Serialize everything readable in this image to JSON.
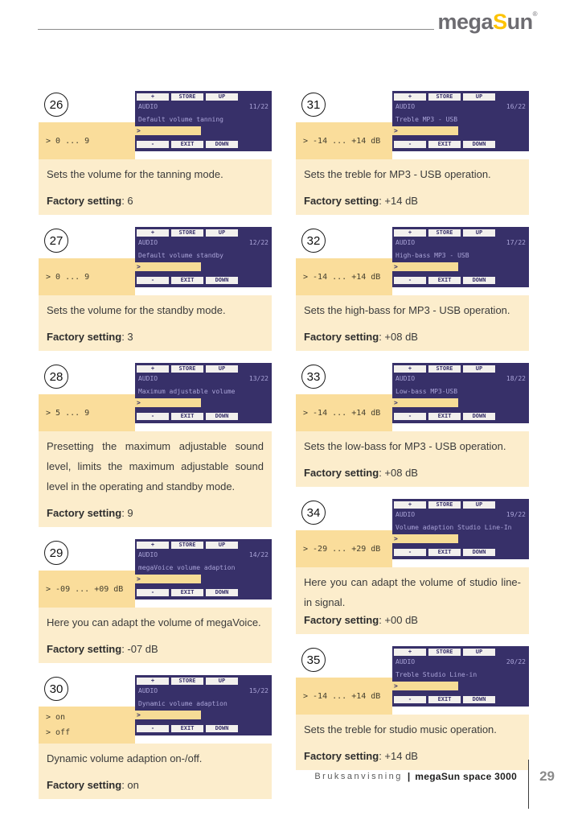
{
  "header": {
    "logo_mega": "mega",
    "logo_s": "S",
    "logo_un": "un",
    "logo_reg": "®"
  },
  "lcd_common": {
    "btn_plus": "+",
    "btn_store": "STORE",
    "btn_up": "UP",
    "btn_minus": "-",
    "btn_exit": "EXIT",
    "btn_down": "DOWN",
    "app": "AUDIO",
    "cursor": ">"
  },
  "colors": {
    "lcd_background": "#373069",
    "lcd_text": "#aaa4d8",
    "lcd_highlight": "#f6dc96",
    "value_box": "#fadd9b",
    "description_box": "#fcedcc",
    "logo_yellow": "#fdc300",
    "logo_gray": "#6d6c71"
  },
  "items": [
    {
      "number": "26",
      "page": "11/22",
      "menu": "Default volume tanning",
      "range_line1": "> 0 ... 9",
      "range_line2": "",
      "description": "Sets the volume for the tanning mode.",
      "factory_label": "Factory setting",
      "factory_value": ": 6"
    },
    {
      "number": "27",
      "page": "12/22",
      "menu": "Default volume standby",
      "range_line1": "> 0 ... 9",
      "range_line2": "",
      "description": "Sets the volume for the standby mode.",
      "factory_label": "Factory setting",
      "factory_value": ": 3"
    },
    {
      "number": "28",
      "page": "13/22",
      "menu": "Maximum adjustable volume",
      "range_line1": "> 5 ... 9",
      "range_line2": "",
      "description": "Presetting the maximum adjustable sound level, limits the maximum adjustable sound level in the operating and standby mode.",
      "factory_label": "Factory setting",
      "factory_value": ": 9"
    },
    {
      "number": "29",
      "page": "14/22",
      "menu": "megaVoice volume adaption",
      "range_line1": "> -09 ... +09 dB",
      "range_line2": "",
      "description": "Here you can adapt the volume of megaVoice.",
      "factory_label": "Factory setting",
      "factory_value": ": -07 dB"
    },
    {
      "number": "30",
      "page": "15/22",
      "menu": "Dynamic volume adaption",
      "range_line1": "> on",
      "range_line2": "> off",
      "description": "Dynamic volume adaption on-/off.",
      "factory_label": "Factory setting",
      "factory_value": ": on"
    },
    {
      "number": "31",
      "page": "16/22",
      "menu": "Treble MP3 - USB",
      "range_line1": "> -14 ... +14 dB",
      "range_line2": "",
      "description": "Sets the treble for MP3 - USB operation.",
      "factory_label": "Factory setting",
      "factory_value": ": +14 dB"
    },
    {
      "number": "32",
      "page": "17/22",
      "menu": "High-bass MP3 - USB",
      "range_line1": "> -14 ... +14 dB",
      "range_line2": "",
      "description": "Sets the high-bass for MP3 - USB operation.",
      "factory_label": "Factory setting",
      "factory_value": ": +08 dB"
    },
    {
      "number": "33",
      "page": "18/22",
      "menu": "Low-bass MP3-USB",
      "range_line1": "> -14 ... +14 dB",
      "range_line2": "",
      "description": "Sets the low-bass for MP3 - USB operation.",
      "factory_label": "Factory setting",
      "factory_value": ": +08 dB"
    },
    {
      "number": "34",
      "page": "19/22",
      "menu": "Volume adaption Studio Line-In",
      "range_line1": "> -29 ... +29 dB",
      "range_line2": "",
      "description": "Here you can adapt the volume of studio line-in signal.",
      "factory_label": "Factory setting",
      "factory_value": ": +00 dB"
    },
    {
      "number": "35",
      "page": "20/22",
      "menu": "Treble Studio Line-in",
      "range_line1": "> -14 ... +14 dB",
      "range_line2": "",
      "description": "Sets the treble for studio music operation.",
      "factory_label": "Factory setting",
      "factory_value": ": +14 dB"
    }
  ],
  "footer": {
    "manual": "Bruksanvisning",
    "separator": "|",
    "product": "megaSun space 3000",
    "page_number": "29"
  }
}
